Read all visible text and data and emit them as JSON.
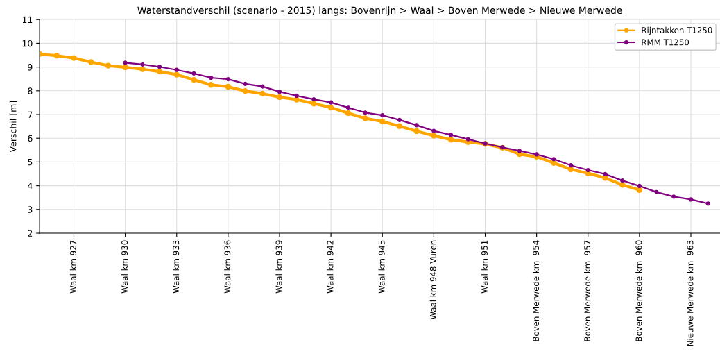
{
  "chart_data": {
    "type": "line",
    "title": "Waterstandverschil (scenario - 2015) langs: Bovenrijn > Waal > Boven Merwede > Nieuwe Merwede",
    "ylabel": "Verschil [m]",
    "categories": [
      null,
      null,
      "Waal km 927",
      null,
      null,
      "Waal km 930",
      null,
      null,
      "Waal km 933",
      null,
      null,
      "Waal km 936",
      null,
      null,
      "Waal km 939",
      null,
      null,
      "Waal km 942",
      null,
      null,
      "Waal km 945",
      null,
      null,
      "Waal km 948 Vuren",
      null,
      null,
      "Waal km 951",
      null,
      null,
      "Boven Merwede km  954",
      null,
      null,
      "Boven Merwede km  957",
      null,
      null,
      "Boven Merwede km  960",
      null,
      null,
      "Nieuwe Merwede km  963",
      null
    ],
    "series": [
      {
        "name": "Rijntakken T1250",
        "color": "#ffa500",
        "values": [
          9.55,
          9.48,
          9.38,
          9.21,
          9.06,
          8.99,
          8.91,
          8.81,
          8.68,
          8.46,
          8.25,
          8.17,
          7.99,
          7.88,
          7.73,
          7.63,
          7.46,
          7.29,
          7.06,
          6.84,
          6.71,
          6.51,
          6.3,
          6.11,
          5.94,
          5.84,
          5.76,
          5.6,
          5.33,
          5.22,
          4.96,
          4.69,
          4.52,
          4.33,
          4.04,
          3.82,
          null,
          null,
          null,
          null
        ]
      },
      {
        "name": "RMM T1250",
        "color": "#800080",
        "values": [
          null,
          null,
          null,
          null,
          null,
          9.18,
          9.11,
          9.01,
          8.88,
          8.73,
          8.55,
          8.49,
          8.29,
          8.18,
          7.96,
          7.79,
          7.64,
          7.51,
          7.29,
          7.08,
          6.97,
          6.77,
          6.55,
          6.31,
          6.14,
          5.96,
          5.78,
          5.62,
          5.47,
          5.32,
          5.12,
          4.86,
          4.66,
          4.49,
          4.22,
          3.99,
          3.73,
          3.54,
          3.42,
          3.25
        ]
      }
    ],
    "ylim": [
      2,
      11
    ],
    "yticks": [
      2,
      3,
      4,
      5,
      6,
      7,
      8,
      9,
      10,
      11
    ],
    "grid": true,
    "legend": "top right",
    "marker": "circle",
    "line_style": "solid"
  }
}
